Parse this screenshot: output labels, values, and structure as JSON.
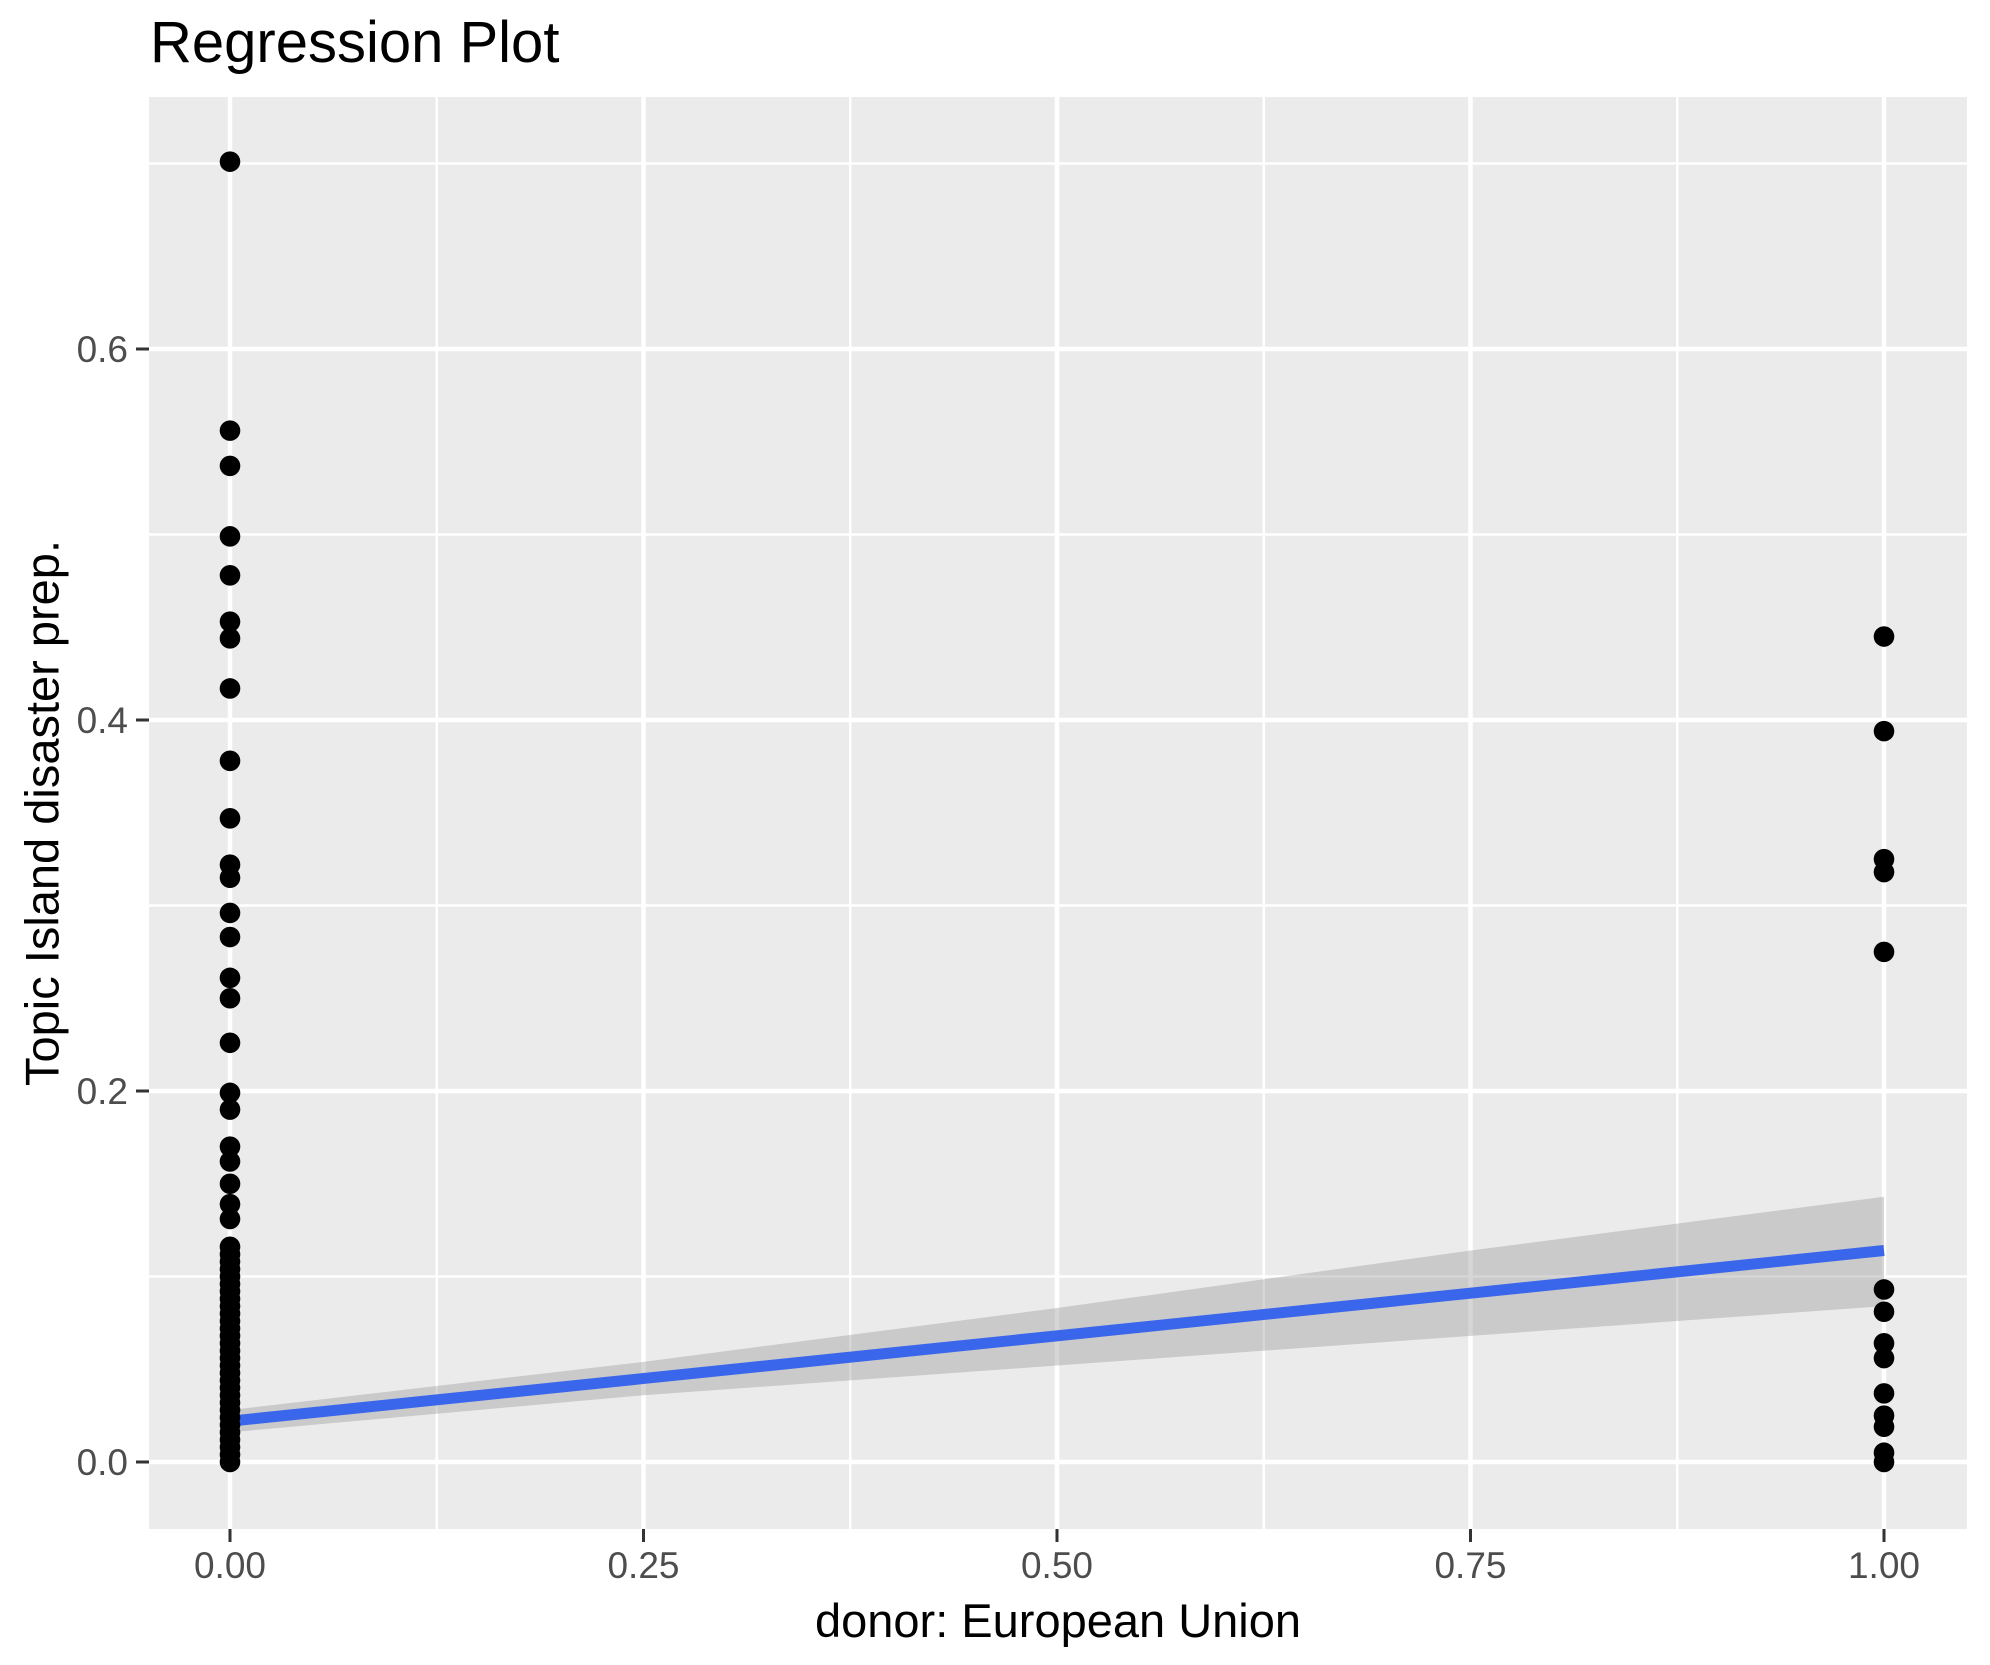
{
  "header": {
    "title": "Regression Plot"
  },
  "chart_data": {
    "type": "scatter",
    "title": "Regression Plot",
    "xlabel": "donor: European Union",
    "ylabel": "Topic Island disaster prep.",
    "xlim": [
      -0.05,
      1.05
    ],
    "ylim": [
      -0.037,
      0.736
    ],
    "grid": true,
    "legend": false,
    "x_ticks": {
      "values": [
        0,
        0.25,
        0.5,
        0.75,
        1.0
      ],
      "labels": [
        "0.00",
        "0.25",
        "0.50",
        "0.75",
        "1.00"
      ]
    },
    "y_ticks": {
      "values": [
        0,
        0.2,
        0.4,
        0.6
      ],
      "labels": [
        "0.0",
        "0.2",
        "0.4",
        "0.6"
      ]
    },
    "x_minor_gridlines": [
      0.125,
      0.375,
      0.625,
      0.875
    ],
    "y_minor_gridlines": [
      0.1,
      0.3,
      0.5,
      0.7
    ],
    "series": [
      {
        "name": "observations at donor = 0",
        "x_value": 0,
        "y_values": [
          0.701,
          0.556,
          0.537,
          0.499,
          0.478,
          0.453,
          0.444,
          0.417,
          0.378,
          0.347,
          0.322,
          0.315,
          0.296,
          0.283,
          0.261,
          0.25,
          0.226,
          0.199,
          0.19,
          0.17,
          0.162,
          0.15,
          0.139,
          0.131,
          0.116,
          0.112,
          0.108,
          0.104,
          0.1,
          0.096,
          0.092,
          0.088,
          0.084,
          0.08,
          0.076,
          0.072,
          0.068,
          0.064,
          0.06,
          0.056,
          0.052,
          0.048,
          0.044,
          0.04,
          0.036,
          0.032,
          0.028,
          0.024,
          0.02,
          0.016,
          0.012,
          0.008,
          0.004,
          0.0
        ]
      },
      {
        "name": "observations at donor = 1",
        "x_value": 1,
        "y_values": [
          0.445,
          0.394,
          0.325,
          0.318,
          0.275,
          0.093,
          0.081,
          0.064,
          0.056,
          0.037,
          0.025,
          0.019,
          0.005,
          0.0
        ]
      }
    ],
    "regression_line": {
      "x": [
        0,
        1
      ],
      "y": [
        0.022,
        0.114
      ]
    },
    "confidence_band": {
      "x": [
        0,
        0.25,
        0.5,
        0.75,
        1.0
      ],
      "upper": [
        0.028,
        0.054,
        0.083,
        0.114,
        0.143
      ],
      "lower": [
        0.016,
        0.036,
        0.052,
        0.068,
        0.084
      ]
    },
    "colors": {
      "panel_bg": "#EBEBEB",
      "gridline": "#FFFFFF",
      "point": "#000000",
      "line": "#3A66EC",
      "band_fill": "rgba(153,153,153,0.4)",
      "tick_label": "#4D4D4D",
      "tick_mark": "#333333",
      "title": "#000000"
    }
  }
}
